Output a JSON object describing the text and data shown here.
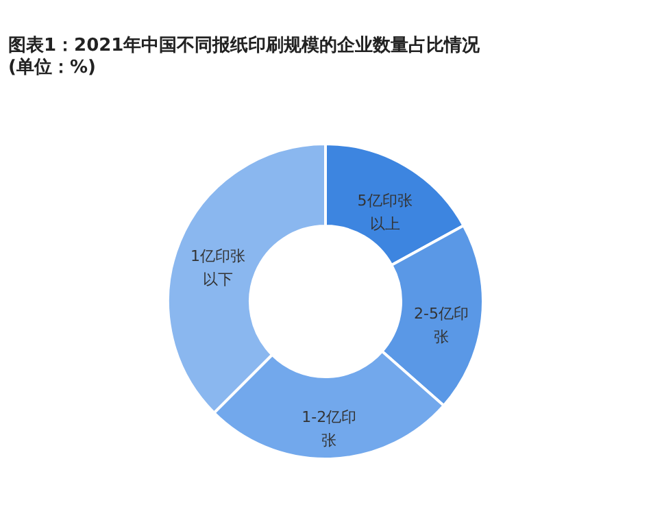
{
  "chart_data": {
    "type": "donut",
    "title": "图表1：2021年中国不同报纸印刷规模的企业数量占比情况",
    "subtitle": "(单位：%)",
    "categories": [
      "5亿印张以上",
      "2-5亿印张",
      "1-2亿印张",
      "1亿印张以下"
    ],
    "values": [
      17,
      19.5,
      26,
      37.5
    ],
    "colors": [
      "#3d85e0",
      "#5a98e6",
      "#72a8ec",
      "#8ab7ef"
    ]
  }
}
